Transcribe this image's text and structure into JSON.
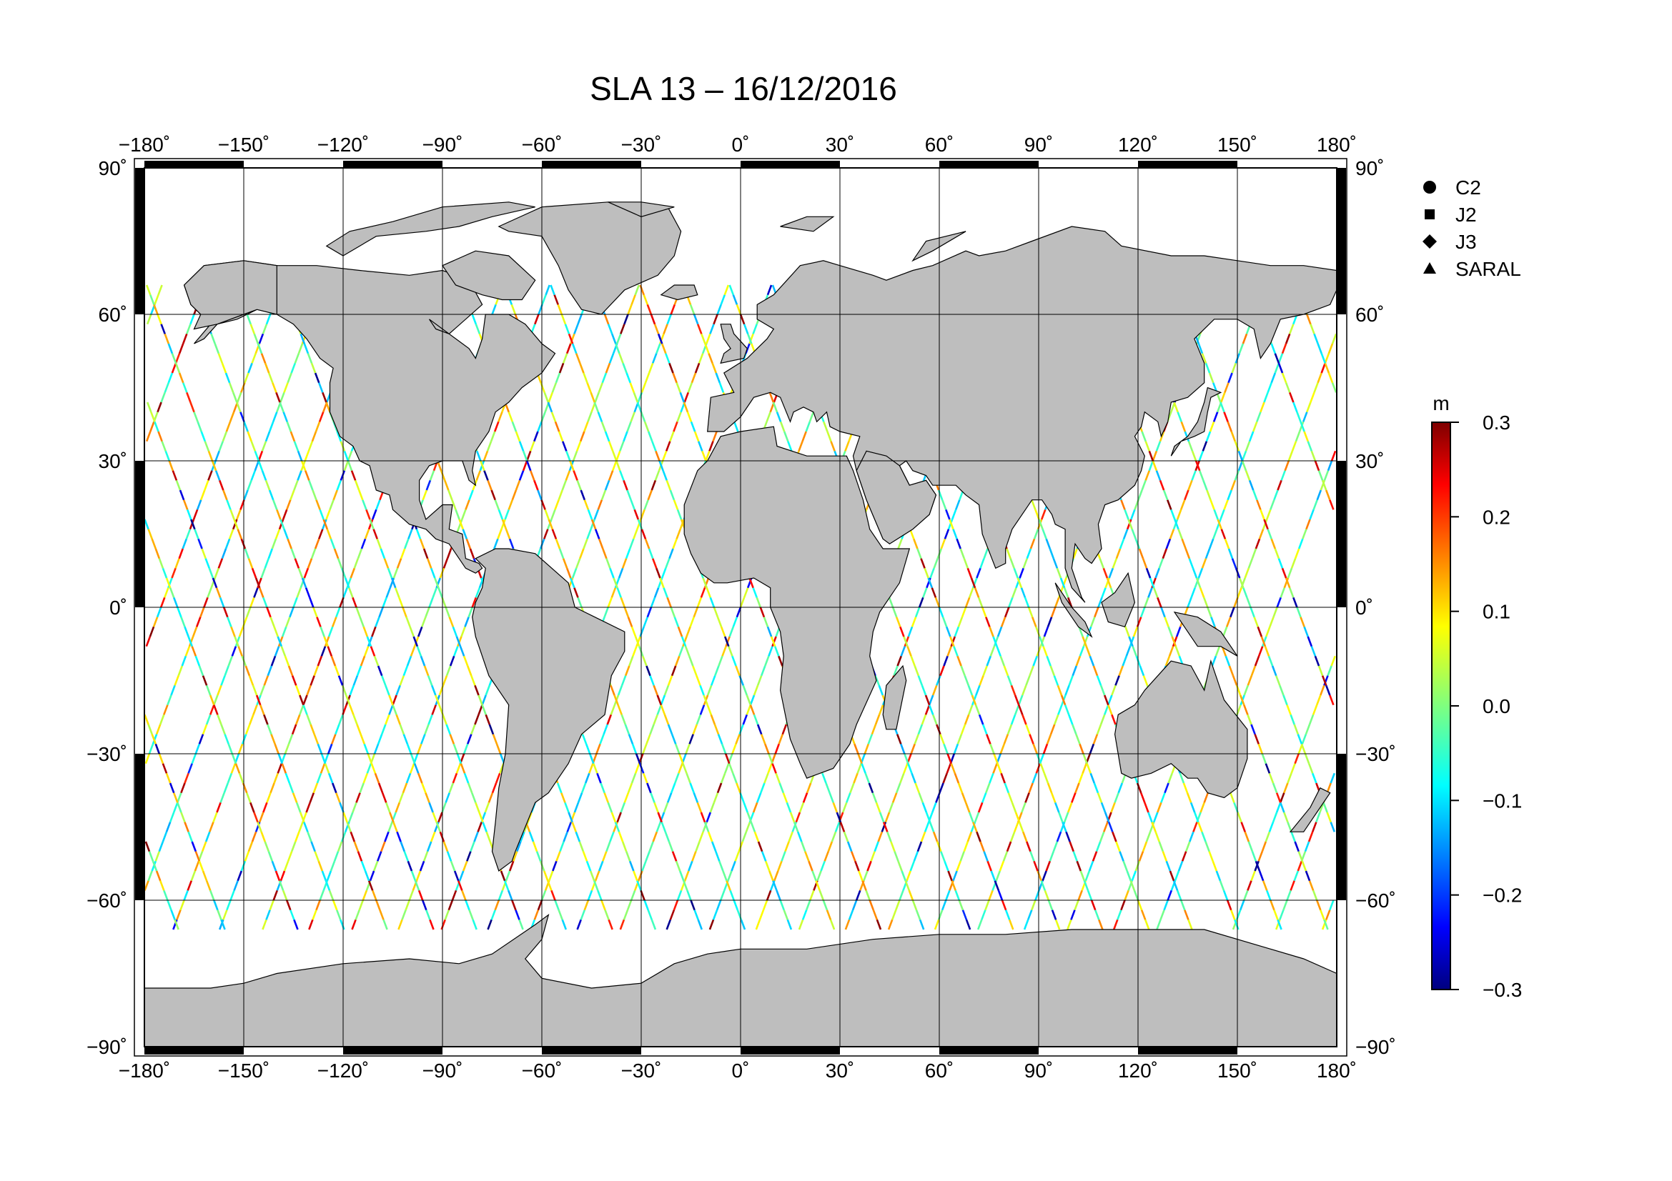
{
  "title": "SLA 13 – 16/12/2016",
  "map": {
    "projection": "equirectangular",
    "lon_range": [
      -180,
      180
    ],
    "lat_range": [
      -90,
      90
    ],
    "grid": true,
    "lon_ticks": [
      -180,
      -150,
      -120,
      -90,
      -60,
      -30,
      0,
      30,
      60,
      90,
      120,
      150,
      180
    ],
    "lat_ticks": [
      90,
      60,
      30,
      0,
      -30,
      -60,
      -90
    ],
    "lon_tick_labels": [
      "−180˚",
      "−150˚",
      "−120˚",
      "−90˚",
      "−60˚",
      "−30˚",
      "0˚",
      "30˚",
      "60˚",
      "90˚",
      "120˚",
      "150˚",
      "180˚"
    ],
    "lat_tick_labels": [
      "90˚",
      "60˚",
      "30˚",
      "0˚",
      "−30˚",
      "−60˚",
      "−90˚"
    ],
    "land_color": "#bebebe",
    "ocean_color": "#ffffff",
    "frame_color": "#000000"
  },
  "legend": {
    "placement": "right",
    "items": [
      {
        "label": "C2",
        "symbol": "circle"
      },
      {
        "label": "J2",
        "symbol": "square"
      },
      {
        "label": "J3",
        "symbol": "diamond"
      },
      {
        "label": "SARAL",
        "symbol": "triangle"
      }
    ]
  },
  "colorbar": {
    "unit": "m",
    "min": -0.3,
    "max": 0.3,
    "colormap": "jet",
    "tick_values": [
      0.3,
      0.2,
      0.1,
      0.0,
      -0.1,
      -0.2,
      -0.3
    ],
    "tick_labels": [
      "0.3",
      "0.2",
      "0.1",
      "0.0",
      "−0.1",
      "−0.2",
      "−0.3"
    ]
  },
  "chart_data": {
    "type": "scatter",
    "description_var": "sea level anomaly along altimeter ground tracks",
    "value_range": [
      -0.3,
      0.3
    ],
    "track_lat_limit": [
      -66,
      66
    ],
    "ascending_tracks_lon0": [
      -175,
      -162,
      -148,
      -135,
      -121,
      -108,
      -94,
      -81,
      -67,
      -54,
      -40,
      -27,
      -13,
      0,
      14,
      27,
      41,
      54,
      68,
      81,
      95,
      108,
      122,
      135,
      149,
      162
    ],
    "descending_tracks_lon0": [
      -170,
      -156,
      -143,
      -129,
      -116,
      -102,
      -89,
      -75,
      -62,
      -48,
      -35,
      -21,
      -8,
      6,
      19,
      33,
      46,
      60,
      73,
      87,
      100,
      114,
      127,
      141,
      154,
      168
    ]
  }
}
